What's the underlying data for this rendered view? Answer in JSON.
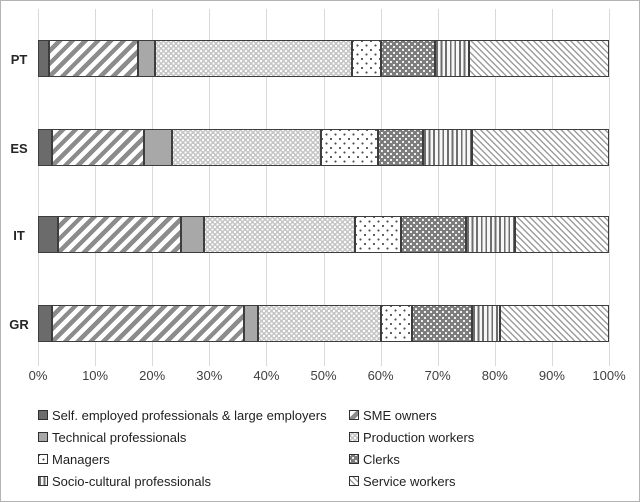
{
  "colors": {
    "gridline": "#d9d9d9",
    "segment_border": "#3d3d3d",
    "axis_text": "#404040",
    "dark_fill": "#6b6b6b",
    "medium_fill": "#a8a8a8"
  },
  "chart_data": {
    "type": "bar",
    "orientation": "horizontal",
    "stacked": true,
    "grid": "vertical",
    "legend_position": "bottom",
    "categories": [
      "PT",
      "ES",
      "IT",
      "GR"
    ],
    "series": [
      {
        "name": "Self. employed professionals & large employers",
        "pattern": "solid-dark-gray",
        "values": [
          2,
          2.5,
          3.5,
          2.5
        ]
      },
      {
        "name": "SME owners",
        "pattern": "thick-forward-diagonal-hatch",
        "values": [
          15.5,
          16,
          21.5,
          33.5
        ]
      },
      {
        "name": "Technical professionals",
        "pattern": "solid-medium-gray",
        "values": [
          3,
          5,
          4,
          2.5
        ]
      },
      {
        "name": "Production workers",
        "pattern": "diamond-dot-grid",
        "values": [
          34.5,
          26,
          26.5,
          21.5
        ]
      },
      {
        "name": "Managers",
        "pattern": "sparse-dark-dots-on-white",
        "values": [
          5,
          10,
          8,
          5.5
        ]
      },
      {
        "name": "Clerks",
        "pattern": "white-dots-on-dark",
        "values": [
          9.5,
          8,
          11.5,
          10.5
        ]
      },
      {
        "name": "Socio-cultural professionals",
        "pattern": "vertical-stripes",
        "values": [
          6,
          8.5,
          8.5,
          5
        ]
      },
      {
        "name": "Service workers",
        "pattern": "thin-backward-diagonal-hatch",
        "values": [
          24.5,
          24,
          16.5,
          19
        ]
      }
    ],
    "x_ticks": [
      "0%",
      "10%",
      "20%",
      "30%",
      "40%",
      "50%",
      "60%",
      "70%",
      "80%",
      "90%",
      "100%"
    ],
    "xlim": [
      0,
      100
    ]
  }
}
